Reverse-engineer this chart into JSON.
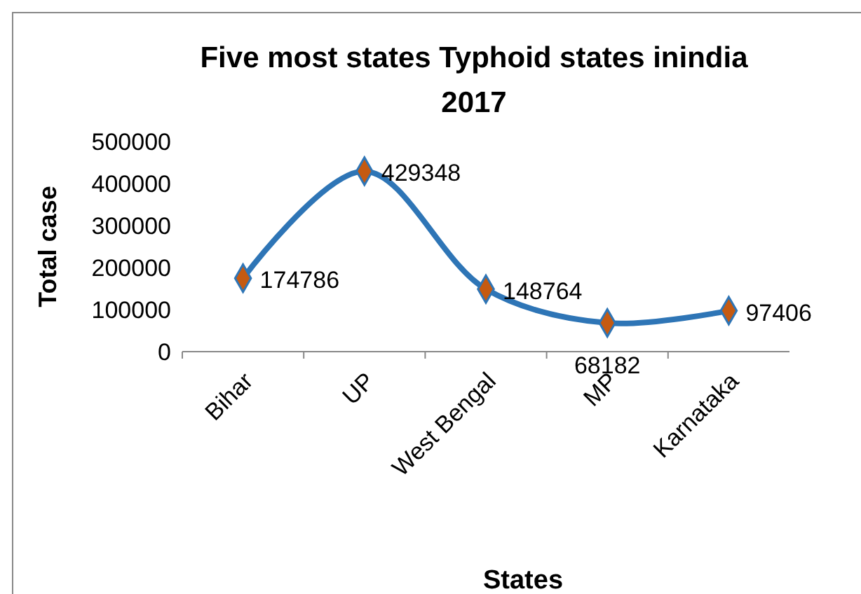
{
  "chart_data": {
    "type": "line",
    "title": "Five most states Typhoid states inindia 2017",
    "xlabel": "States",
    "ylabel": "Total case",
    "categories": [
      "Bihar",
      "UP",
      "West Bengal",
      "MP",
      "Karnataka"
    ],
    "series": [
      {
        "color": "#2e75b6",
        "values": [
          174786,
          429348,
          148764,
          68182,
          97406
        ]
      }
    ],
    "ylim": [
      0,
      500000
    ],
    "yticks": [
      0,
      100000,
      200000,
      300000,
      400000,
      500000
    ],
    "marker": "diamond",
    "data_labels": true
  }
}
